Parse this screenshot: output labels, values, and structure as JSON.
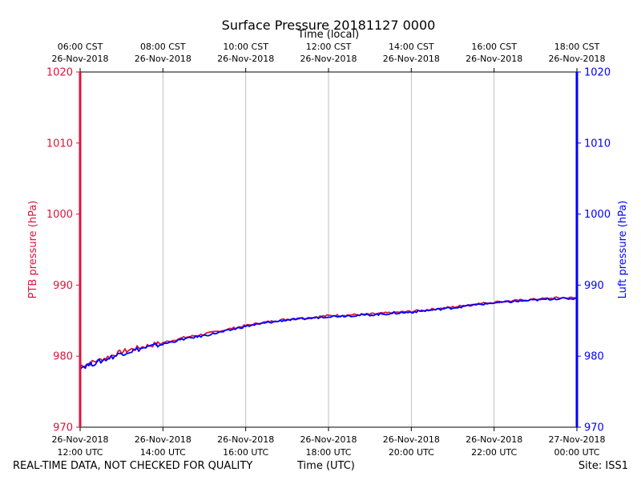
{
  "chart_data": {
    "type": "line",
    "title": "Surface Pressure 20181127 0000",
    "top_xlabel": "Time (local)",
    "bottom_xlabel": "Time (UTC)",
    "ylabel_left": "PTB pressure (hPa)",
    "ylabel_right": "Luft pressure (hPa)",
    "ylim": [
      970,
      1020
    ],
    "yticks": [
      970,
      980,
      990,
      1000,
      1010,
      1020
    ],
    "xlim_hours": [
      0,
      12
    ],
    "grid": "vertical",
    "bottom_ticks": [
      {
        "hour": 0,
        "date": "26-Nov-2018",
        "time": "12:00 UTC"
      },
      {
        "hour": 2,
        "date": "26-Nov-2018",
        "time": "14:00 UTC"
      },
      {
        "hour": 4,
        "date": "26-Nov-2018",
        "time": "16:00 UTC"
      },
      {
        "hour": 6,
        "date": "26-Nov-2018",
        "time": "18:00 UTC"
      },
      {
        "hour": 8,
        "date": "26-Nov-2018",
        "time": "20:00 UTC"
      },
      {
        "hour": 10,
        "date": "26-Nov-2018",
        "time": "22:00 UTC"
      },
      {
        "hour": 12,
        "date": "27-Nov-2018",
        "time": "00:00 UTC"
      }
    ],
    "top_ticks": [
      {
        "hour": 0,
        "time": "06:00 CST",
        "date": "26-Nov-2018"
      },
      {
        "hour": 2,
        "time": "08:00 CST",
        "date": "26-Nov-2018"
      },
      {
        "hour": 4,
        "time": "10:00 CST",
        "date": "26-Nov-2018"
      },
      {
        "hour": 6,
        "time": "12:00 CST",
        "date": "26-Nov-2018"
      },
      {
        "hour": 8,
        "time": "14:00 CST",
        "date": "26-Nov-2018"
      },
      {
        "hour": 10,
        "time": "16:00 CST",
        "date": "26-Nov-2018"
      },
      {
        "hour": 12,
        "time": "18:00 CST",
        "date": "26-Nov-2018"
      }
    ],
    "series": [
      {
        "name": "PTB pressure",
        "color": "#dc143c",
        "x": [
          0,
          0.5,
          1,
          1.5,
          2,
          2.5,
          3,
          3.5,
          4,
          4.5,
          5,
          5.5,
          6,
          6.5,
          7,
          7.5,
          8,
          8.5,
          9,
          9.5,
          10,
          10.5,
          11,
          11.5,
          12
        ],
        "y": [
          978.6,
          979.5,
          980.6,
          981.3,
          981.9,
          982.6,
          983.1,
          983.7,
          984.3,
          984.8,
          985.2,
          985.4,
          985.7,
          985.8,
          985.9,
          986.1,
          986.3,
          986.6,
          986.9,
          987.3,
          987.6,
          987.8,
          988.0,
          988.2,
          988.2
        ]
      },
      {
        "name": "Luft pressure",
        "color": "#0000ff",
        "x": [
          0,
          0.5,
          1,
          1.5,
          2,
          2.5,
          3,
          3.5,
          4,
          4.5,
          5,
          5.5,
          6,
          6.5,
          7,
          7.5,
          8,
          8.5,
          9,
          9.5,
          10,
          10.5,
          11,
          11.5,
          12
        ],
        "y": [
          978.4,
          979.3,
          980.4,
          981.1,
          981.7,
          982.4,
          982.9,
          983.5,
          984.2,
          984.7,
          985.1,
          985.3,
          985.6,
          985.7,
          985.8,
          986.0,
          986.2,
          986.5,
          986.8,
          987.2,
          987.5,
          987.7,
          987.9,
          988.1,
          988.1
        ]
      }
    ]
  },
  "footer": {
    "left": "REAL-TIME DATA, NOT CHECKED FOR QUALITY",
    "center": "Time (UTC)",
    "right": "Site: ISS1"
  }
}
